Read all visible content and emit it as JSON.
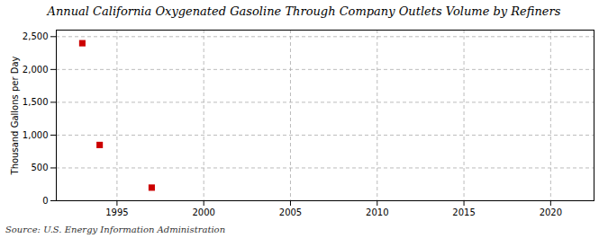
{
  "chart_data": {
    "type": "scatter",
    "title": "Annual California Oxygenated Gasoline Through Company Outlets Volume by Refiners",
    "ylabel": "Thousand Gallons per Day",
    "annotation": "Source: U.S. Energy Information Administration",
    "x": [
      1993,
      1994,
      1997
    ],
    "values": [
      2400,
      850,
      200
    ],
    "color": "#cc0000",
    "marker": "square",
    "xlim": [
      1991.5,
      2022.5
    ],
    "xticks": [
      1995,
      2000,
      2005,
      2010,
      2015,
      2020
    ],
    "ylim": [
      0,
      2600
    ],
    "yticks": [
      0,
      500,
      {
        "value": 1000,
        "label": "1,000"
      },
      {
        "value": 1500,
        "label": "1,500"
      },
      {
        "value": 2000,
        "label": "2,000"
      },
      {
        "value": 2500,
        "label": "2,500"
      }
    ],
    "grid": true
  }
}
